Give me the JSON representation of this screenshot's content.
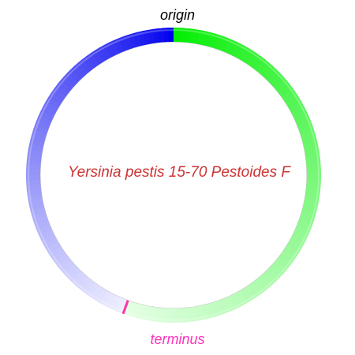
{
  "diagram": {
    "type": "circular-genome-map",
    "organism": "Yersinia pestis 15-70 Pestoides F",
    "origin_label": "origin",
    "terminus_label": "terminus",
    "terminus_position_deg": 200,
    "colors": {
      "right_replichore_start": "#00ee00",
      "right_replichore_end": "#e6ffe6",
      "left_replichore_start": "#0000ee",
      "left_replichore_end": "#f0f0ff",
      "terminus_marker": "#ff33aa",
      "terminus_text": "#ff33bb",
      "origin_text": "#000000",
      "organism_text": "#cc3333",
      "ring_shadow": "#555555"
    }
  }
}
